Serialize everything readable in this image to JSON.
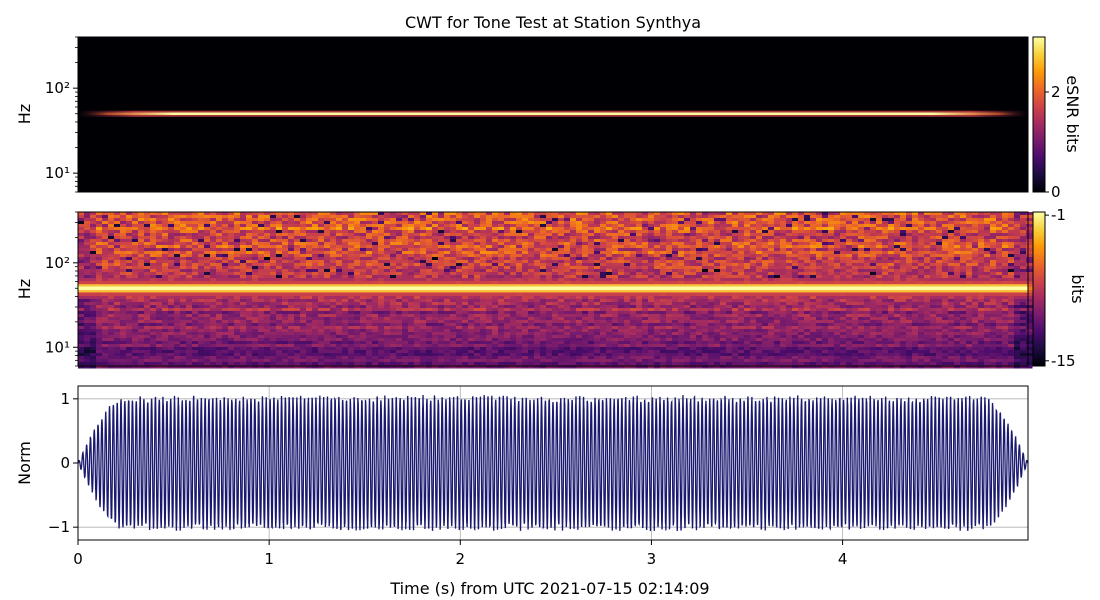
{
  "title": "CWT for Tone Test at Station Synthya",
  "colormap": [
    "#000004",
    "#1b0c41",
    "#4a0c6b",
    "#781c6d",
    "#a52c60",
    "#cf4446",
    "#ed6925",
    "#fb9b06",
    "#f7d13d",
    "#fcffa4"
  ],
  "chart_data": [
    {
      "id": "esnr",
      "type": "heatmap",
      "ylabel": "Hz",
      "yscale": "log",
      "ylim": [
        6,
        400
      ],
      "yticks": [
        {
          "value": 10,
          "label": "10¹"
        },
        {
          "value": 100,
          "label": "10²"
        }
      ],
      "xlim": [
        0,
        4.97
      ],
      "tone_hz": 50,
      "colorbar": {
        "label": "eSNR bits",
        "range": [
          0,
          3.1
        ],
        "ticks": [
          {
            "value": 0,
            "label": "0"
          },
          {
            "value": 2,
            "label": "2"
          }
        ]
      }
    },
    {
      "id": "cwt",
      "type": "heatmap",
      "ylabel": "Hz",
      "yscale": "log",
      "ylim": [
        6,
        400
      ],
      "yticks": [
        {
          "value": 10,
          "label": "10¹"
        },
        {
          "value": 100,
          "label": "10²"
        }
      ],
      "xlim": [
        0,
        4.97
      ],
      "tone_hz": 50,
      "colorbar": {
        "label": "bits",
        "range": [
          -15.5,
          -0.7
        ],
        "ticks": [
          {
            "value": -1,
            "label": "-1"
          },
          {
            "value": -15,
            "label": "-15"
          }
        ]
      }
    },
    {
      "id": "waveform",
      "type": "line",
      "ylabel": "Norm",
      "xlabel": "Time (s) from UTC 2021-07-15 02:14:09",
      "xlim": [
        0,
        4.97
      ],
      "ylim": [
        -1.2,
        1.2
      ],
      "xticks": [
        {
          "value": 0,
          "label": "0"
        },
        {
          "value": 1,
          "label": "1"
        },
        {
          "value": 2,
          "label": "2"
        },
        {
          "value": 3,
          "label": "3"
        },
        {
          "value": 4,
          "label": "4"
        }
      ],
      "yticks": [
        {
          "value": 1,
          "label": "1"
        },
        {
          "value": 0,
          "label": "0"
        },
        {
          "value": -1,
          "label": "−1"
        }
      ],
      "grid": true,
      "line_color": "#191970",
      "tone_hz": 50,
      "amplitude": 1.0
    }
  ]
}
